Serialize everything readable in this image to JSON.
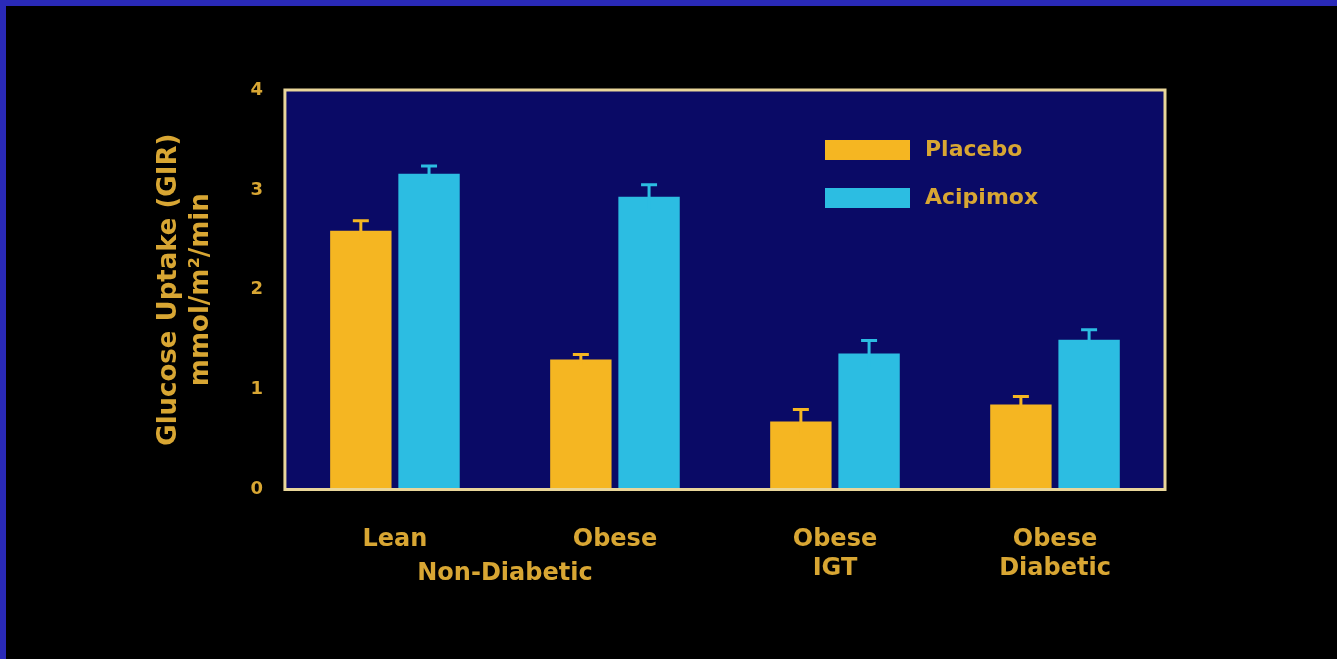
{
  "chart_data": {
    "type": "bar",
    "ylabel": "Glucose Uptake (GIR)\nmmol/m²/min",
    "categories": [
      "Lean",
      "Obese",
      "Obese IGT",
      "Obese Diabetic"
    ],
    "series": [
      {
        "name": "Placebo",
        "color": "#f5b622",
        "values": [
          2.59,
          1.3,
          0.68,
          0.85
        ],
        "errors": [
          0.1,
          0.05,
          0.12,
          0.08
        ]
      },
      {
        "name": "Acipimox",
        "color": "#2cbde2",
        "values": [
          3.16,
          2.93,
          1.36,
          1.5
        ],
        "errors": [
          0.08,
          0.12,
          0.13,
          0.1
        ]
      }
    ],
    "annotations": [
      "Non-Diabetic"
    ],
    "ylim": [
      0,
      4
    ],
    "yticks": [
      0,
      1,
      2,
      3,
      4
    ],
    "grid": false,
    "legend": "top right"
  }
}
